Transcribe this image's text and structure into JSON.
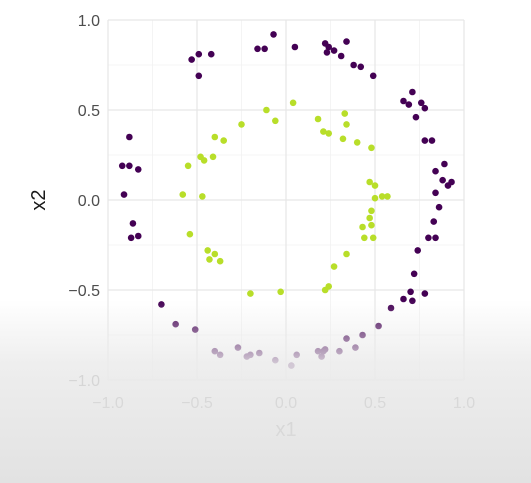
{
  "chart_data": {
    "type": "scatter",
    "title": "",
    "xlabel": "x1",
    "ylabel": "x2",
    "xlim": [
      -1.0,
      1.0
    ],
    "ylim": [
      -1.0,
      1.0
    ],
    "x_ticks": [
      -1.0,
      -0.5,
      0.0,
      0.5,
      1.0
    ],
    "y_ticks": [
      -1.0,
      -0.5,
      0.0,
      0.5,
      1.0
    ],
    "x_tick_labels": [
      "−1.0",
      "−0.5",
      "0.0",
      "0.5",
      "1.0"
    ],
    "y_tick_labels": [
      "−1.0",
      "−0.5",
      "0.0",
      "0.5",
      "1.0"
    ],
    "grid": true,
    "legend": "none",
    "series": [
      {
        "color": "#440154",
        "points": [
          [
            -0.53,
            0.78
          ],
          [
            -0.49,
            0.81
          ],
          [
            -0.42,
            0.81
          ],
          [
            -0.49,
            0.69
          ],
          [
            -0.16,
            0.84
          ],
          [
            -0.12,
            0.84
          ],
          [
            -0.07,
            0.92
          ],
          [
            0.05,
            0.85
          ],
          [
            0.22,
            0.87
          ],
          [
            0.24,
            0.85
          ],
          [
            0.23,
            0.82
          ],
          [
            0.27,
            0.83
          ],
          [
            0.34,
            0.88
          ],
          [
            0.31,
            0.8
          ],
          [
            0.38,
            0.75
          ],
          [
            0.42,
            0.74
          ],
          [
            0.49,
            0.69
          ],
          [
            0.71,
            0.6
          ],
          [
            0.66,
            0.55
          ],
          [
            0.69,
            0.53
          ],
          [
            0.76,
            0.54
          ],
          [
            0.78,
            0.51
          ],
          [
            0.73,
            0.46
          ],
          [
            0.78,
            0.33
          ],
          [
            0.82,
            0.33
          ],
          [
            0.89,
            0.2
          ],
          [
            0.84,
            0.16
          ],
          [
            0.88,
            0.11
          ],
          [
            0.93,
            0.1
          ],
          [
            0.91,
            0.08
          ],
          [
            0.84,
            0.04
          ],
          [
            0.86,
            -0.04
          ],
          [
            0.83,
            -0.12
          ],
          [
            0.8,
            -0.21
          ],
          [
            0.84,
            -0.21
          ],
          [
            0.74,
            -0.28
          ],
          [
            0.72,
            -0.41
          ],
          [
            0.7,
            -0.51
          ],
          [
            0.78,
            -0.52
          ],
          [
            0.66,
            -0.55
          ],
          [
            0.71,
            -0.56
          ],
          [
            0.59,
            -0.6
          ],
          [
            0.52,
            -0.7
          ],
          [
            0.43,
            -0.75
          ],
          [
            0.34,
            -0.77
          ],
          [
            0.39,
            -0.82
          ],
          [
            0.3,
            -0.84
          ],
          [
            0.22,
            -0.83
          ],
          [
            0.21,
            -0.84
          ],
          [
            0.18,
            -0.84
          ],
          [
            0.2,
            -0.87
          ],
          [
            0.06,
            -0.86
          ],
          [
            0.03,
            -0.92
          ],
          [
            -0.06,
            -0.89
          ],
          [
            -0.15,
            -0.85
          ],
          [
            -0.22,
            -0.87
          ],
          [
            -0.2,
            -0.86
          ],
          [
            -0.27,
            -0.82
          ],
          [
            -0.37,
            -0.86
          ],
          [
            -0.4,
            -0.84
          ],
          [
            -0.51,
            -0.72
          ],
          [
            -0.62,
            -0.69
          ],
          [
            -0.7,
            -0.58
          ],
          [
            -0.92,
            0.19
          ],
          [
            -0.88,
            0.19
          ],
          [
            -0.83,
            0.17
          ],
          [
            -0.88,
            0.35
          ],
          [
            -0.91,
            0.03
          ],
          [
            -0.86,
            -0.13
          ],
          [
            -0.83,
            -0.2
          ],
          [
            -0.87,
            -0.21
          ]
        ]
      },
      {
        "color": "#b8de29",
        "points": [
          [
            -0.11,
            0.5
          ],
          [
            -0.06,
            0.44
          ],
          [
            0.04,
            0.54
          ],
          [
            0.18,
            0.45
          ],
          [
            0.21,
            0.38
          ],
          [
            0.24,
            0.37
          ],
          [
            0.33,
            0.48
          ],
          [
            0.34,
            0.42
          ],
          [
            0.32,
            0.34
          ],
          [
            0.4,
            0.32
          ],
          [
            0.48,
            0.29
          ],
          [
            -0.25,
            0.42
          ],
          [
            -0.4,
            0.35
          ],
          [
            -0.35,
            0.33
          ],
          [
            -0.41,
            0.24
          ],
          [
            -0.48,
            0.24
          ],
          [
            -0.46,
            0.22
          ],
          [
            -0.55,
            0.19
          ],
          [
            -0.58,
            0.03
          ],
          [
            -0.47,
            0.02
          ],
          [
            -0.54,
            -0.19
          ],
          [
            -0.44,
            -0.28
          ],
          [
            -0.4,
            -0.3
          ],
          [
            -0.43,
            -0.33
          ],
          [
            -0.37,
            -0.34
          ],
          [
            -0.2,
            -0.52
          ],
          [
            -0.03,
            -0.51
          ],
          [
            0.22,
            -0.5
          ],
          [
            0.24,
            -0.48
          ],
          [
            0.27,
            -0.37
          ],
          [
            0.34,
            -0.3
          ],
          [
            0.43,
            -0.15
          ],
          [
            0.48,
            -0.14
          ],
          [
            0.44,
            -0.21
          ],
          [
            0.49,
            -0.21
          ],
          [
            0.47,
            -0.1
          ],
          [
            0.48,
            -0.06
          ],
          [
            0.47,
            0.1
          ],
          [
            0.5,
            0.01
          ],
          [
            0.54,
            0.02
          ],
          [
            0.57,
            0.02
          ],
          [
            0.5,
            0.08
          ]
        ]
      }
    ]
  }
}
